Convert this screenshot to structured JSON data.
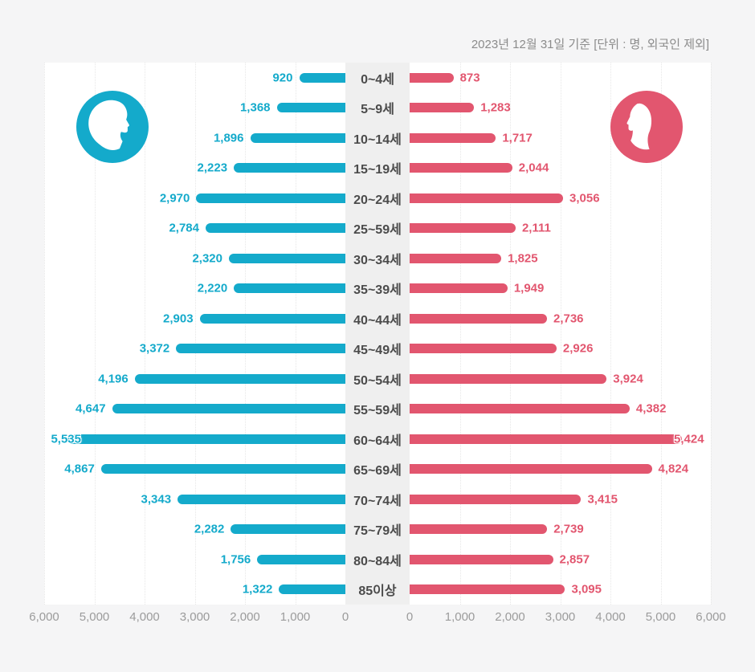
{
  "header": {
    "title": "2023년 12월 31일 기준 [단위 : 명, 외국인 제외]"
  },
  "colors": {
    "male_accent": "#14aacb",
    "female_accent": "#e2566f",
    "age_label": "#4b4b4b",
    "axis_label": "#9b9b9b",
    "title_text": "#8b8b8b",
    "center_column_bg": "#efefef",
    "plot_bg": "#ffffff",
    "page_bg": "#f5f5f6",
    "gridline": "#e7e7e7"
  },
  "icons": {
    "male": "male-profile-icon",
    "female": "female-profile-icon"
  },
  "chart_data": {
    "type": "bar",
    "subtype": "population-pyramid",
    "title": "2023년 12월 31일 기준 [단위 : 명, 외국인 제외]",
    "categories": [
      "0~4세",
      "5~9세",
      "10~14세",
      "15~19세",
      "20~24세",
      "25~59세",
      "30~34세",
      "35~39세",
      "40~44세",
      "45~49세",
      "50~54세",
      "55~59세",
      "60~64세",
      "65~69세",
      "70~74세",
      "75~79세",
      "80~84세",
      "85이상"
    ],
    "series": [
      {
        "name": "male",
        "side": "left",
        "color": "#14aacb",
        "values": [
          920,
          1368,
          1896,
          2223,
          2970,
          2784,
          2320,
          2220,
          2903,
          3372,
          4196,
          4647,
          5535,
          4867,
          3343,
          2282,
          1756,
          1322
        ]
      },
      {
        "name": "female",
        "side": "right",
        "color": "#e2566f",
        "values": [
          873,
          1283,
          1717,
          2044,
          3056,
          2111,
          1825,
          1949,
          2736,
          2926,
          3924,
          4382,
          5424,
          4824,
          3415,
          2739,
          2857,
          3095
        ]
      }
    ],
    "xlim": [
      0,
      6000
    ],
    "tick_step": 1000,
    "axis_ticks_left": [
      "6,000",
      "5,000",
      "4,000",
      "3,000",
      "2,000",
      "1,000",
      "0"
    ],
    "axis_ticks_right": [
      "0",
      "1,000",
      "2,000",
      "3,000",
      "4,000",
      "5,000",
      "6,000"
    ],
    "grid": "dotted-vertical",
    "legend_position": "none",
    "value_labels": true
  }
}
